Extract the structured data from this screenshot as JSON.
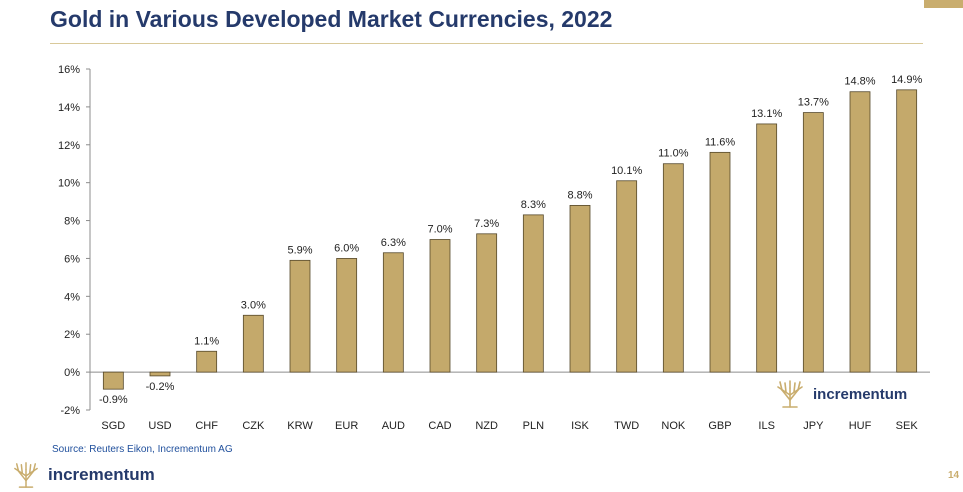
{
  "title": "Gold in Various Developed Market Currencies, 2022",
  "source": "Source: Reuters Eikon, Incrementum AG",
  "brand": {
    "name": "incrementum",
    "logo_icon": "tree-icon"
  },
  "page_number": "14",
  "colors": {
    "bar": "#c4a96b",
    "bar_edge": "#55482a",
    "title": "#253a6b",
    "accent": "#c9ad6e"
  },
  "chart_data": {
    "type": "bar",
    "title": "Gold in Various Developed Market Currencies, 2022",
    "xlabel": "",
    "ylabel": "",
    "categories": [
      "SGD",
      "USD",
      "CHF",
      "CZK",
      "KRW",
      "EUR",
      "AUD",
      "CAD",
      "NZD",
      "PLN",
      "ISK",
      "TWD",
      "NOK",
      "GBP",
      "ILS",
      "JPY",
      "HUF",
      "SEK"
    ],
    "values": [
      -0.9,
      -0.2,
      1.1,
      3.0,
      5.9,
      6.0,
      6.3,
      7.0,
      7.3,
      8.3,
      8.8,
      10.1,
      11.0,
      11.6,
      13.1,
      13.7,
      14.8,
      14.9
    ],
    "data_labels": [
      "-0.9%",
      "-0.2%",
      "1.1%",
      "3.0%",
      "5.9%",
      "6.0%",
      "6.3%",
      "7.0%",
      "7.3%",
      "8.3%",
      "8.8%",
      "10.1%",
      "11.0%",
      "11.6%",
      "13.1%",
      "13.7%",
      "14.8%",
      "14.9%"
    ],
    "ylim": [
      -2,
      16
    ],
    "yticks": [
      -2,
      0,
      2,
      4,
      6,
      8,
      10,
      12,
      14,
      16
    ],
    "ytick_labels": [
      "-2%",
      "0%",
      "2%",
      "4%",
      "6%",
      "8%",
      "10%",
      "12%",
      "14%",
      "16%"
    ],
    "grid": false,
    "legend": "none"
  }
}
